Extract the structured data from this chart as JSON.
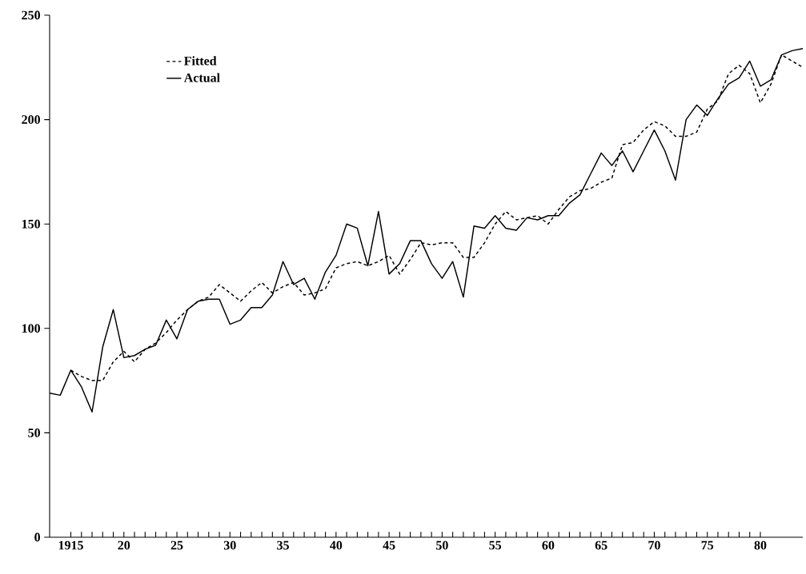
{
  "chart_data": {
    "type": "line",
    "xlim": [
      1913,
      1984
    ],
    "xticks": [
      {
        "value": 1915,
        "label": "1915"
      },
      {
        "value": 1920,
        "label": "20"
      },
      {
        "value": 1925,
        "label": "25"
      },
      {
        "value": 1930,
        "label": "30"
      },
      {
        "value": 1935,
        "label": "35"
      },
      {
        "value": 1940,
        "label": "40"
      },
      {
        "value": 1945,
        "label": "45"
      },
      {
        "value": 1950,
        "label": "50"
      },
      {
        "value": 1955,
        "label": "55"
      },
      {
        "value": 1960,
        "label": "60"
      },
      {
        "value": 1965,
        "label": "65"
      },
      {
        "value": 1970,
        "label": "70"
      },
      {
        "value": 1975,
        "label": "75"
      },
      {
        "value": 1980,
        "label": "80"
      }
    ],
    "ylim": [
      0,
      250
    ],
    "yticks": [
      0,
      50,
      100,
      150,
      200,
      250
    ],
    "grid": false,
    "legend": "top left",
    "marker": "none",
    "series": [
      {
        "name": "Fitted",
        "color": "#000000",
        "line_style": "dashed",
        "x": [
          1915,
          1916,
          1917,
          1918,
          1919,
          1920,
          1921,
          1922,
          1923,
          1924,
          1925,
          1926,
          1927,
          1928,
          1929,
          1930,
          1931,
          1932,
          1933,
          1934,
          1935,
          1936,
          1937,
          1938,
          1939,
          1940,
          1941,
          1942,
          1943,
          1944,
          1945,
          1946,
          1947,
          1948,
          1949,
          1950,
          1951,
          1952,
          1953,
          1954,
          1955,
          1956,
          1957,
          1958,
          1959,
          1960,
          1961,
          1962,
          1963,
          1964,
          1965,
          1966,
          1967,
          1968,
          1969,
          1970,
          1971,
          1972,
          1973,
          1974,
          1975,
          1976,
          1977,
          1978,
          1979,
          1980,
          1981,
          1982,
          1983,
          1984
        ],
        "values": [
          80,
          77,
          75,
          75,
          84,
          89,
          84,
          90,
          93,
          98,
          104,
          109,
          113,
          115,
          121,
          117,
          113,
          118,
          122,
          117,
          120,
          122,
          116,
          117,
          119,
          129,
          131,
          132,
          130,
          132,
          135,
          126,
          133,
          141,
          140,
          141,
          141,
          134,
          134,
          141,
          150,
          156,
          152,
          153,
          154,
          150,
          157,
          163,
          166,
          167,
          170,
          172,
          188,
          189,
          195,
          199,
          197,
          192,
          192,
          194,
          205,
          209,
          222,
          226,
          222,
          208,
          217,
          231,
          228,
          225
        ]
      },
      {
        "name": "Actual",
        "color": "#000000",
        "line_style": "solid",
        "x": [
          1913,
          1914,
          1915,
          1916,
          1917,
          1918,
          1919,
          1920,
          1921,
          1922,
          1923,
          1924,
          1925,
          1926,
          1927,
          1928,
          1929,
          1930,
          1931,
          1932,
          1933,
          1934,
          1935,
          1936,
          1937,
          1938,
          1939,
          1940,
          1941,
          1942,
          1943,
          1944,
          1945,
          1946,
          1947,
          1948,
          1949,
          1950,
          1951,
          1952,
          1953,
          1954,
          1955,
          1956,
          1957,
          1958,
          1959,
          1960,
          1961,
          1962,
          1963,
          1964,
          1965,
          1966,
          1967,
          1968,
          1969,
          1970,
          1971,
          1972,
          1973,
          1974,
          1975,
          1976,
          1977,
          1978,
          1979,
          1980,
          1981,
          1982,
          1983,
          1984
        ],
        "values": [
          69,
          68,
          80,
          72,
          60,
          91,
          109,
          86,
          87,
          90,
          92,
          104,
          95,
          109,
          113,
          114,
          114,
          102,
          104,
          110,
          110,
          116,
          132,
          121,
          124,
          114,
          127,
          135,
          150,
          148,
          130,
          156,
          126,
          131,
          142,
          142,
          131,
          124,
          132,
          115,
          149,
          148,
          154,
          148,
          147,
          153,
          152,
          154,
          154,
          160,
          164,
          174,
          184,
          178,
          185,
          175,
          185,
          195,
          185,
          171,
          200,
          207,
          202,
          210,
          217,
          220,
          228,
          216,
          219,
          231,
          233,
          234
        ]
      }
    ]
  }
}
